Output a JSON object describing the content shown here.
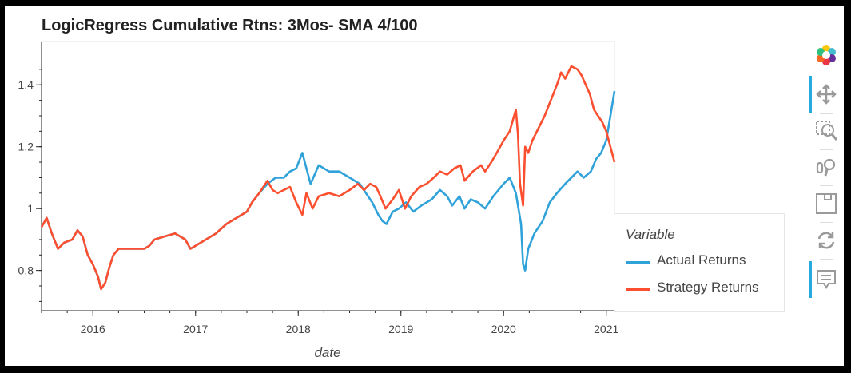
{
  "chart_data": {
    "type": "line",
    "title": "LogicRegress Cumulative Rtns: 3Mos- SMA 4/100",
    "xlabel": "date",
    "ylabel": "",
    "x_ticks": [
      "2016",
      "2017",
      "2018",
      "2019",
      "2020",
      "2021"
    ],
    "y_ticks": [
      "0.8",
      "1",
      "1.2",
      "1.4"
    ],
    "xlim": [
      2015.5,
      2021.08
    ],
    "ylim": [
      0.67,
      1.54
    ],
    "grid": false,
    "legend_title": "Variable",
    "legend_position": "right",
    "series": [
      {
        "name": "Actual Returns",
        "color": "#30a2da",
        "points": [
          [
            2015.5,
            0.94
          ],
          [
            2015.55,
            0.97
          ],
          [
            2015.6,
            0.92
          ],
          [
            2015.66,
            0.87
          ],
          [
            2015.72,
            0.89
          ],
          [
            2015.8,
            0.9
          ],
          [
            2015.85,
            0.93
          ],
          [
            2015.9,
            0.91
          ],
          [
            2015.95,
            0.85
          ],
          [
            2016.0,
            0.82
          ],
          [
            2016.05,
            0.78
          ],
          [
            2016.08,
            0.74
          ],
          [
            2016.12,
            0.76
          ],
          [
            2016.16,
            0.81
          ],
          [
            2016.2,
            0.85
          ],
          [
            2016.25,
            0.87
          ],
          [
            2016.35,
            0.87
          ],
          [
            2016.5,
            0.87
          ],
          [
            2016.55,
            0.88
          ],
          [
            2016.6,
            0.9
          ],
          [
            2016.7,
            0.91
          ],
          [
            2016.8,
            0.92
          ],
          [
            2016.9,
            0.9
          ],
          [
            2016.95,
            0.87
          ],
          [
            2017.0,
            0.88
          ],
          [
            2017.1,
            0.9
          ],
          [
            2017.2,
            0.92
          ],
          [
            2017.3,
            0.95
          ],
          [
            2017.4,
            0.97
          ],
          [
            2017.5,
            0.99
          ],
          [
            2017.55,
            1.02
          ],
          [
            2017.62,
            1.05
          ],
          [
            2017.7,
            1.08
          ],
          [
            2017.78,
            1.1
          ],
          [
            2017.86,
            1.1
          ],
          [
            2017.92,
            1.12
          ],
          [
            2017.98,
            1.13
          ],
          [
            2018.04,
            1.18
          ],
          [
            2018.08,
            1.13
          ],
          [
            2018.12,
            1.08
          ],
          [
            2018.2,
            1.14
          ],
          [
            2018.3,
            1.12
          ],
          [
            2018.4,
            1.12
          ],
          [
            2018.5,
            1.1
          ],
          [
            2018.6,
            1.08
          ],
          [
            2018.66,
            1.05
          ],
          [
            2018.72,
            1.02
          ],
          [
            2018.78,
            0.98
          ],
          [
            2018.82,
            0.96
          ],
          [
            2018.86,
            0.95
          ],
          [
            2018.92,
            0.99
          ],
          [
            2018.98,
            1.0
          ],
          [
            2019.05,
            1.02
          ],
          [
            2019.12,
            0.99
          ],
          [
            2019.2,
            1.01
          ],
          [
            2019.3,
            1.03
          ],
          [
            2019.38,
            1.06
          ],
          [
            2019.45,
            1.04
          ],
          [
            2019.5,
            1.01
          ],
          [
            2019.57,
            1.04
          ],
          [
            2019.62,
            1.0
          ],
          [
            2019.68,
            1.03
          ],
          [
            2019.75,
            1.02
          ],
          [
            2019.82,
            1.0
          ],
          [
            2019.9,
            1.04
          ],
          [
            2019.95,
            1.06
          ],
          [
            2020.0,
            1.08
          ],
          [
            2020.06,
            1.1
          ],
          [
            2020.12,
            1.05
          ],
          [
            2020.17,
            0.95
          ],
          [
            2020.19,
            0.82
          ],
          [
            2020.21,
            0.8
          ],
          [
            2020.24,
            0.87
          ],
          [
            2020.3,
            0.92
          ],
          [
            2020.38,
            0.96
          ],
          [
            2020.45,
            1.02
          ],
          [
            2020.52,
            1.05
          ],
          [
            2020.6,
            1.08
          ],
          [
            2020.66,
            1.1
          ],
          [
            2020.72,
            1.12
          ],
          [
            2020.78,
            1.1
          ],
          [
            2020.85,
            1.12
          ],
          [
            2020.9,
            1.16
          ],
          [
            2020.95,
            1.18
          ],
          [
            2021.0,
            1.22
          ],
          [
            2021.04,
            1.3
          ],
          [
            2021.08,
            1.38
          ]
        ]
      },
      {
        "name": "Strategy Returns",
        "color": "#fc4f30",
        "points": [
          [
            2015.5,
            0.94
          ],
          [
            2015.55,
            0.97
          ],
          [
            2015.6,
            0.92
          ],
          [
            2015.66,
            0.87
          ],
          [
            2015.72,
            0.89
          ],
          [
            2015.8,
            0.9
          ],
          [
            2015.85,
            0.93
          ],
          [
            2015.9,
            0.91
          ],
          [
            2015.95,
            0.85
          ],
          [
            2016.0,
            0.82
          ],
          [
            2016.05,
            0.78
          ],
          [
            2016.08,
            0.74
          ],
          [
            2016.12,
            0.76
          ],
          [
            2016.16,
            0.81
          ],
          [
            2016.2,
            0.85
          ],
          [
            2016.25,
            0.87
          ],
          [
            2016.35,
            0.87
          ],
          [
            2016.5,
            0.87
          ],
          [
            2016.55,
            0.88
          ],
          [
            2016.6,
            0.9
          ],
          [
            2016.7,
            0.91
          ],
          [
            2016.8,
            0.92
          ],
          [
            2016.9,
            0.9
          ],
          [
            2016.95,
            0.87
          ],
          [
            2017.0,
            0.88
          ],
          [
            2017.1,
            0.9
          ],
          [
            2017.2,
            0.92
          ],
          [
            2017.3,
            0.95
          ],
          [
            2017.4,
            0.97
          ],
          [
            2017.5,
            0.99
          ],
          [
            2017.55,
            1.02
          ],
          [
            2017.62,
            1.05
          ],
          [
            2017.7,
            1.09
          ],
          [
            2017.75,
            1.06
          ],
          [
            2017.8,
            1.05
          ],
          [
            2017.86,
            1.06
          ],
          [
            2017.92,
            1.07
          ],
          [
            2017.98,
            1.02
          ],
          [
            2018.04,
            0.98
          ],
          [
            2018.08,
            1.05
          ],
          [
            2018.14,
            1.0
          ],
          [
            2018.2,
            1.04
          ],
          [
            2018.3,
            1.05
          ],
          [
            2018.4,
            1.04
          ],
          [
            2018.5,
            1.06
          ],
          [
            2018.58,
            1.08
          ],
          [
            2018.64,
            1.06
          ],
          [
            2018.7,
            1.08
          ],
          [
            2018.76,
            1.07
          ],
          [
            2018.8,
            1.04
          ],
          [
            2018.85,
            1.0
          ],
          [
            2018.92,
            1.03
          ],
          [
            2018.98,
            1.06
          ],
          [
            2019.04,
            1.0
          ],
          [
            2019.1,
            1.04
          ],
          [
            2019.18,
            1.07
          ],
          [
            2019.25,
            1.08
          ],
          [
            2019.32,
            1.1
          ],
          [
            2019.38,
            1.12
          ],
          [
            2019.45,
            1.11
          ],
          [
            2019.52,
            1.13
          ],
          [
            2019.58,
            1.14
          ],
          [
            2019.62,
            1.09
          ],
          [
            2019.7,
            1.12
          ],
          [
            2019.78,
            1.14
          ],
          [
            2019.82,
            1.12
          ],
          [
            2019.88,
            1.15
          ],
          [
            2019.95,
            1.19
          ],
          [
            2020.0,
            1.22
          ],
          [
            2020.06,
            1.25
          ],
          [
            2020.12,
            1.32
          ],
          [
            2020.14,
            1.24
          ],
          [
            2020.16,
            1.08
          ],
          [
            2020.19,
            1.01
          ],
          [
            2020.21,
            1.2
          ],
          [
            2020.24,
            1.18
          ],
          [
            2020.28,
            1.22
          ],
          [
            2020.34,
            1.26
          ],
          [
            2020.4,
            1.3
          ],
          [
            2020.46,
            1.35
          ],
          [
            2020.52,
            1.4
          ],
          [
            2020.56,
            1.44
          ],
          [
            2020.6,
            1.42
          ],
          [
            2020.66,
            1.46
          ],
          [
            2020.72,
            1.45
          ],
          [
            2020.76,
            1.43
          ],
          [
            2020.8,
            1.4
          ],
          [
            2020.84,
            1.37
          ],
          [
            2020.88,
            1.32
          ],
          [
            2020.92,
            1.3
          ],
          [
            2020.96,
            1.28
          ],
          [
            2021.0,
            1.25
          ],
          [
            2021.04,
            1.2
          ],
          [
            2021.08,
            1.15
          ]
        ]
      }
    ]
  },
  "toolbar": {
    "tools": [
      {
        "name": "bokeh-logo-icon"
      },
      {
        "name": "pan-icon",
        "active": true
      },
      {
        "name": "box-zoom-icon"
      },
      {
        "name": "wheel-zoom-icon"
      },
      {
        "name": "save-icon"
      },
      {
        "name": "reset-icon"
      },
      {
        "name": "hover-icon",
        "active": true
      }
    ]
  }
}
